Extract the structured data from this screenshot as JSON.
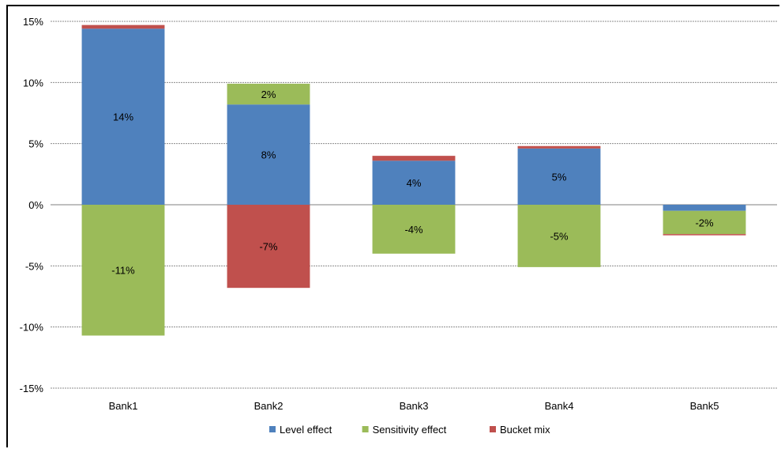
{
  "chart_data": {
    "type": "bar",
    "stacked": true,
    "categories": [
      "Bank1",
      "Bank2",
      "Bank3",
      "Bank4",
      "Bank5"
    ],
    "series": [
      {
        "name": "Level effect",
        "color": "#4F81BD",
        "values": [
          14.4,
          8.2,
          3.6,
          4.6,
          -0.5
        ]
      },
      {
        "name": "Sensitivity effect",
        "color": "#9BBB59",
        "values": [
          -10.7,
          1.7,
          -4.0,
          -5.1,
          -1.9
        ]
      },
      {
        "name": "Bucket mix",
        "color": "#C0504D",
        "values": [
          0.3,
          -6.8,
          0.4,
          0.2,
          -0.1
        ]
      }
    ],
    "data_labels": [
      {
        "category": "Bank1",
        "series": "Level effect",
        "text": "14%"
      },
      {
        "category": "Bank1",
        "series": "Sensitivity effect",
        "text": "-11%"
      },
      {
        "category": "Bank2",
        "series": "Level effect",
        "text": "8%"
      },
      {
        "category": "Bank2",
        "series": "Sensitivity effect",
        "text": "2%"
      },
      {
        "category": "Bank2",
        "series": "Bucket mix",
        "text": "-7%"
      },
      {
        "category": "Bank3",
        "series": "Level effect",
        "text": "4%"
      },
      {
        "category": "Bank3",
        "series": "Sensitivity effect",
        "text": "-4%"
      },
      {
        "category": "Bank4",
        "series": "Level effect",
        "text": "5%"
      },
      {
        "category": "Bank4",
        "series": "Sensitivity effect",
        "text": "-5%"
      },
      {
        "category": "Bank5",
        "series": "Sensitivity effect",
        "text": "-2%"
      }
    ],
    "ylim": [
      -15,
      15
    ],
    "yticks": [
      15,
      10,
      5,
      0,
      -5,
      -10,
      -15
    ],
    "ytick_labels": [
      "15%",
      "10%",
      "5%",
      "0%",
      "-5%",
      "-10%",
      "-15%"
    ],
    "grid": true,
    "legend_position": "bottom",
    "title": "",
    "xlabel": "",
    "ylabel": ""
  }
}
